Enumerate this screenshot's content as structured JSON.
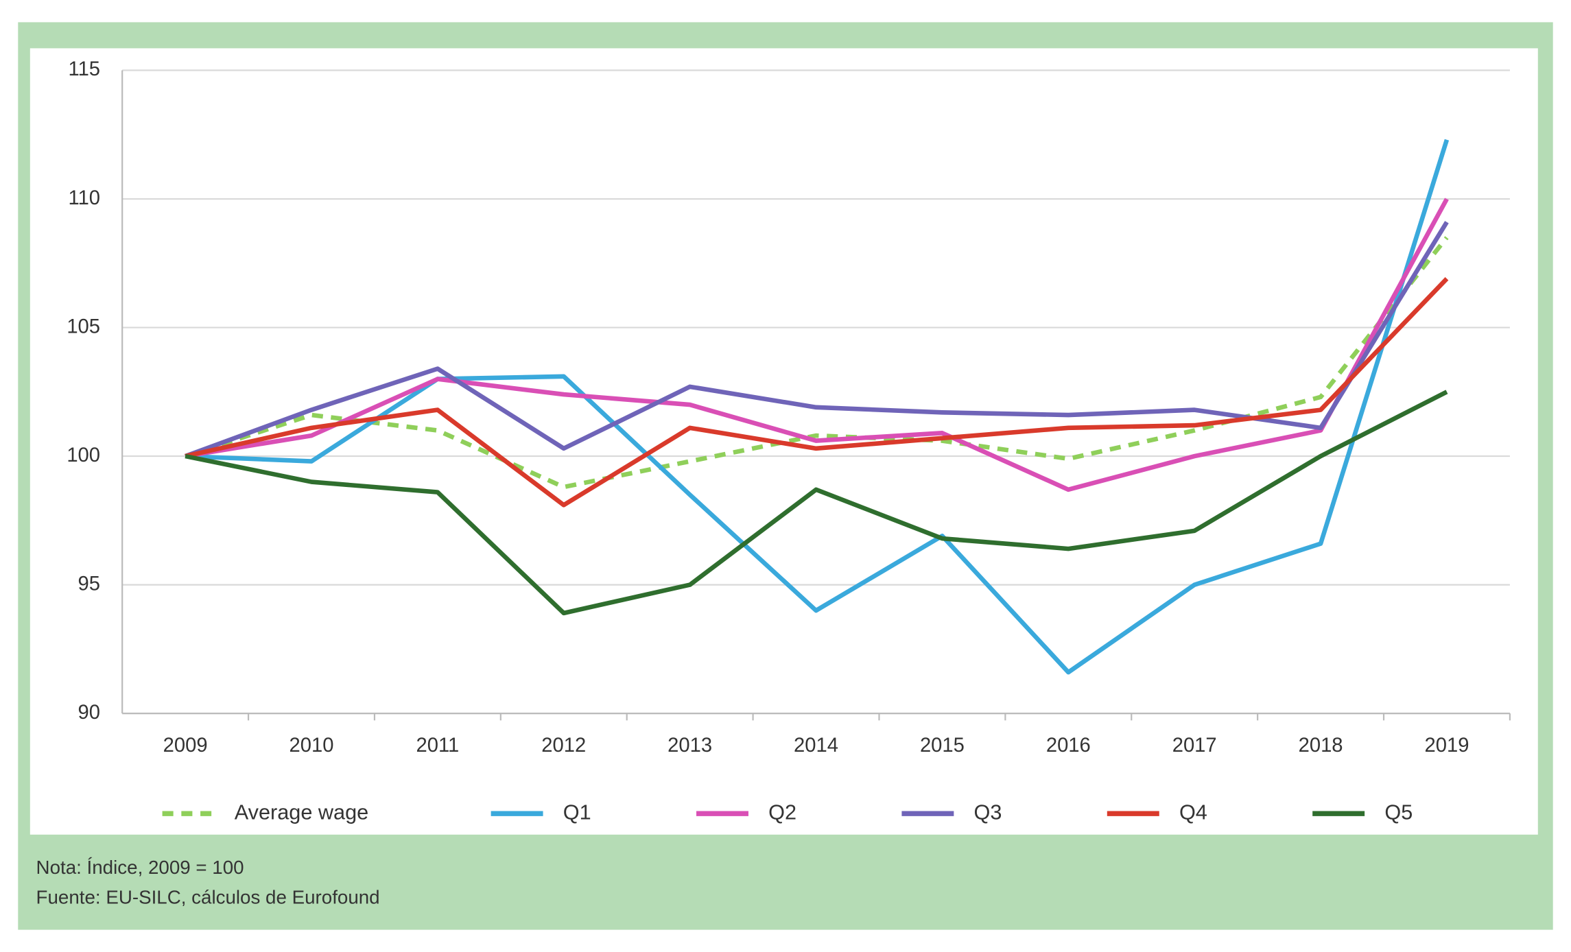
{
  "chart_data": {
    "type": "line",
    "categories": [
      "2009",
      "2010",
      "2011",
      "2012",
      "2013",
      "2014",
      "2015",
      "2016",
      "2017",
      "2018",
      "2019"
    ],
    "series": [
      {
        "name": "Average wage",
        "color": "#8fcf5a",
        "dashed": true,
        "values": [
          100,
          101.6,
          101,
          98.8,
          99.8,
          100.8,
          100.6,
          99.9,
          101,
          102.3,
          108.5
        ]
      },
      {
        "name": "Q1",
        "color": "#3aa9dc",
        "values": [
          100,
          99.8,
          103,
          103.1,
          98.5,
          94,
          96.9,
          91.6,
          95,
          96.6,
          112.3
        ]
      },
      {
        "name": "Q2",
        "color": "#d94fb5",
        "values": [
          100,
          100.8,
          103,
          102.4,
          102,
          100.6,
          100.9,
          98.7,
          100,
          101,
          110
        ]
      },
      {
        "name": "Q3",
        "color": "#6f64b8",
        "values": [
          100,
          101.8,
          103.4,
          100.3,
          102.7,
          101.9,
          101.7,
          101.6,
          101.8,
          101.1,
          109.1
        ]
      },
      {
        "name": "Q4",
        "color": "#d93a2b",
        "values": [
          100,
          101.1,
          101.8,
          98.1,
          101.1,
          100.3,
          100.7,
          101.1,
          101.2,
          101.8,
          106.9
        ]
      },
      {
        "name": "Q5",
        "color": "#2f6e2e",
        "values": [
          100,
          99,
          98.6,
          93.9,
          95,
          98.7,
          96.8,
          96.4,
          97.1,
          100,
          102.5
        ]
      }
    ],
    "ylim": [
      90,
      115
    ],
    "yticks": [
      90,
      95,
      100,
      105,
      110,
      115
    ],
    "grid": true,
    "notes": [
      "Nota: Índice, 2009 = 100",
      "Fuente: EU-SILC, cálculos de Eurofound"
    ]
  }
}
